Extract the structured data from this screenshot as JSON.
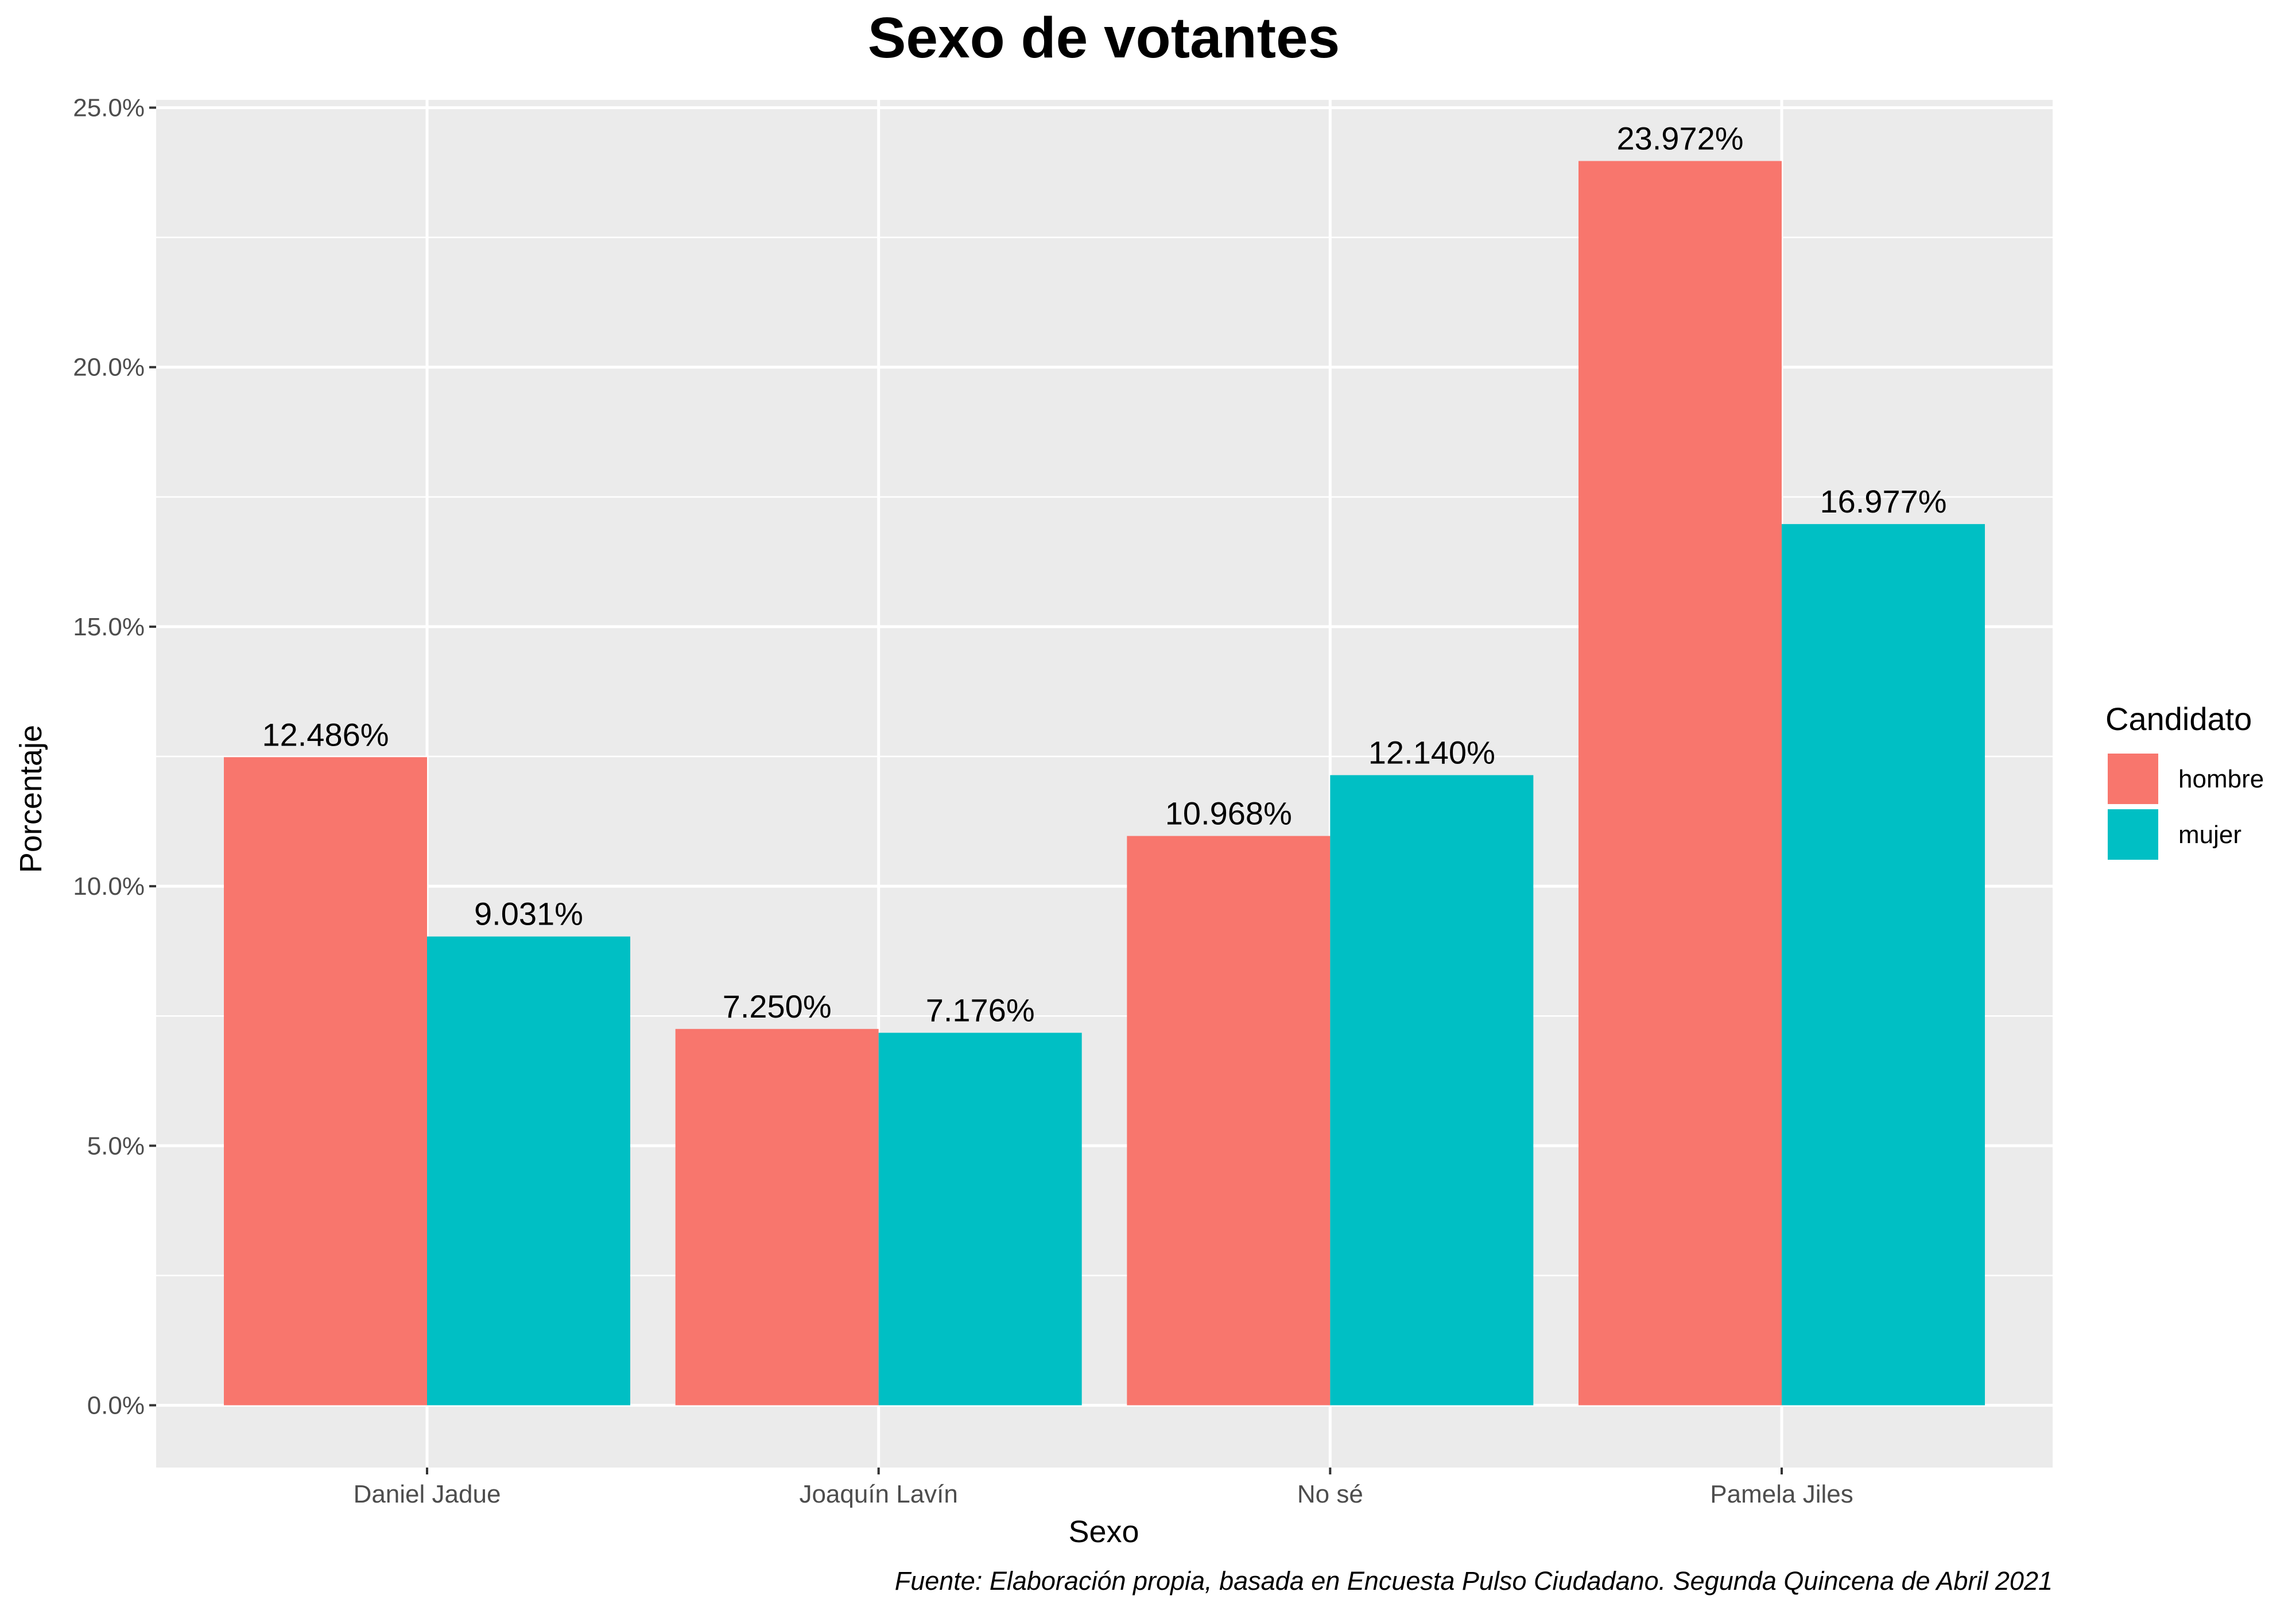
{
  "chart_data": {
    "type": "bar",
    "title": "Sexo de votantes",
    "xlabel": "Sexo",
    "ylabel": "Porcentaje",
    "categories": [
      "Daniel Jadue",
      "Joaquín Lavín",
      "No sé",
      "Pamela Jiles"
    ],
    "series": [
      {
        "name": "hombre",
        "color": "#F8766D",
        "values": [
          12.486,
          7.25,
          10.968,
          23.972
        ],
        "labels": [
          "12.486%",
          "7.250%",
          "10.968%",
          "23.972%"
        ]
      },
      {
        "name": "mujer",
        "color": "#00BFC4",
        "values": [
          9.031,
          7.176,
          12.14,
          16.977
        ],
        "labels": [
          "9.031%",
          "7.176%",
          "12.140%",
          "16.977%"
        ]
      }
    ],
    "ylim": [
      -1.2,
      25.15
    ],
    "yticks": [
      0,
      5,
      10,
      15,
      20,
      25
    ],
    "ytick_labels": [
      "0.0%",
      "5.0%",
      "10.0%",
      "15.0%",
      "20.0%",
      "25.0%"
    ],
    "grid": true,
    "legend": {
      "title": "Candidato",
      "position": "right"
    },
    "caption": "Fuente: Elaboración propia, basada en Encuesta Pulso Ciudadano. Segunda Quincena de Abril 2021",
    "panel_background": "#EBEBEB",
    "grid_color": "#FFFFFF"
  }
}
